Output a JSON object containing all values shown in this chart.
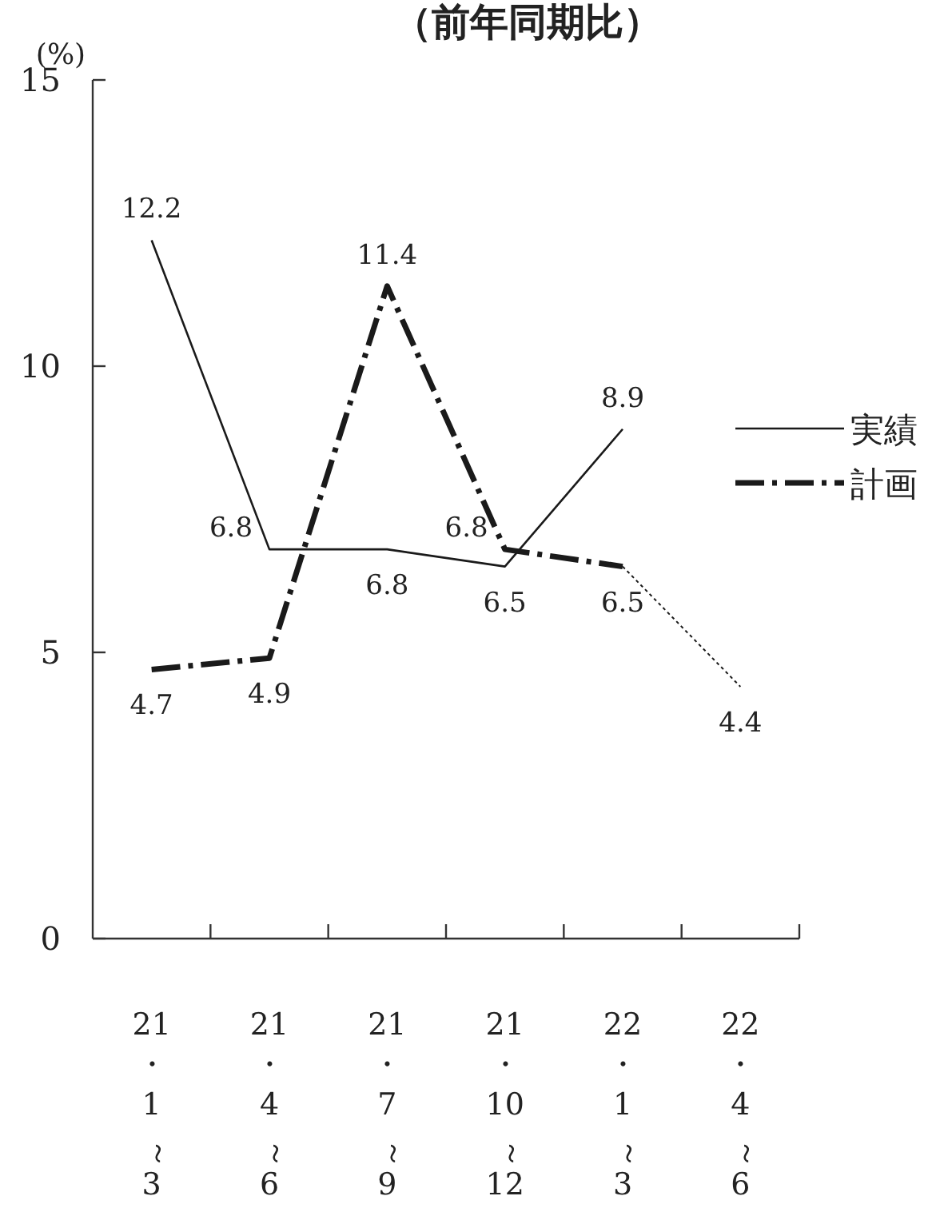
{
  "chart_data": {
    "type": "line",
    "title": "（前年同期比）",
    "ylabel": "(%)",
    "categories": [
      "21・1～3",
      "21・4～6",
      "21・7～9",
      "21・10～12",
      "22・1～3",
      "22・4～6"
    ],
    "series": [
      {
        "name": "実績",
        "color": "#1a1a1a",
        "line_style": "solid",
        "values": [
          12.2,
          6.8,
          6.8,
          6.5,
          8.9,
          null
        ]
      },
      {
        "name": "計画",
        "color": "#1a1a1a",
        "line_style": "dashdot",
        "values": [
          4.7,
          4.9,
          11.4,
          6.8,
          6.5,
          null
        ]
      },
      {
        "color": "#1a1a1a",
        "line_style": "dotted",
        "values": [
          null,
          null,
          null,
          null,
          6.5,
          4.4
        ],
        "value_labels": [
          null,
          null,
          null,
          null,
          null,
          "4.4"
        ]
      }
    ],
    "ylim": [
      0,
      15
    ],
    "yticks": [
      0,
      5,
      10,
      15
    ],
    "data_labels": true,
    "legend": "right",
    "grid": false,
    "marker": "none"
  }
}
